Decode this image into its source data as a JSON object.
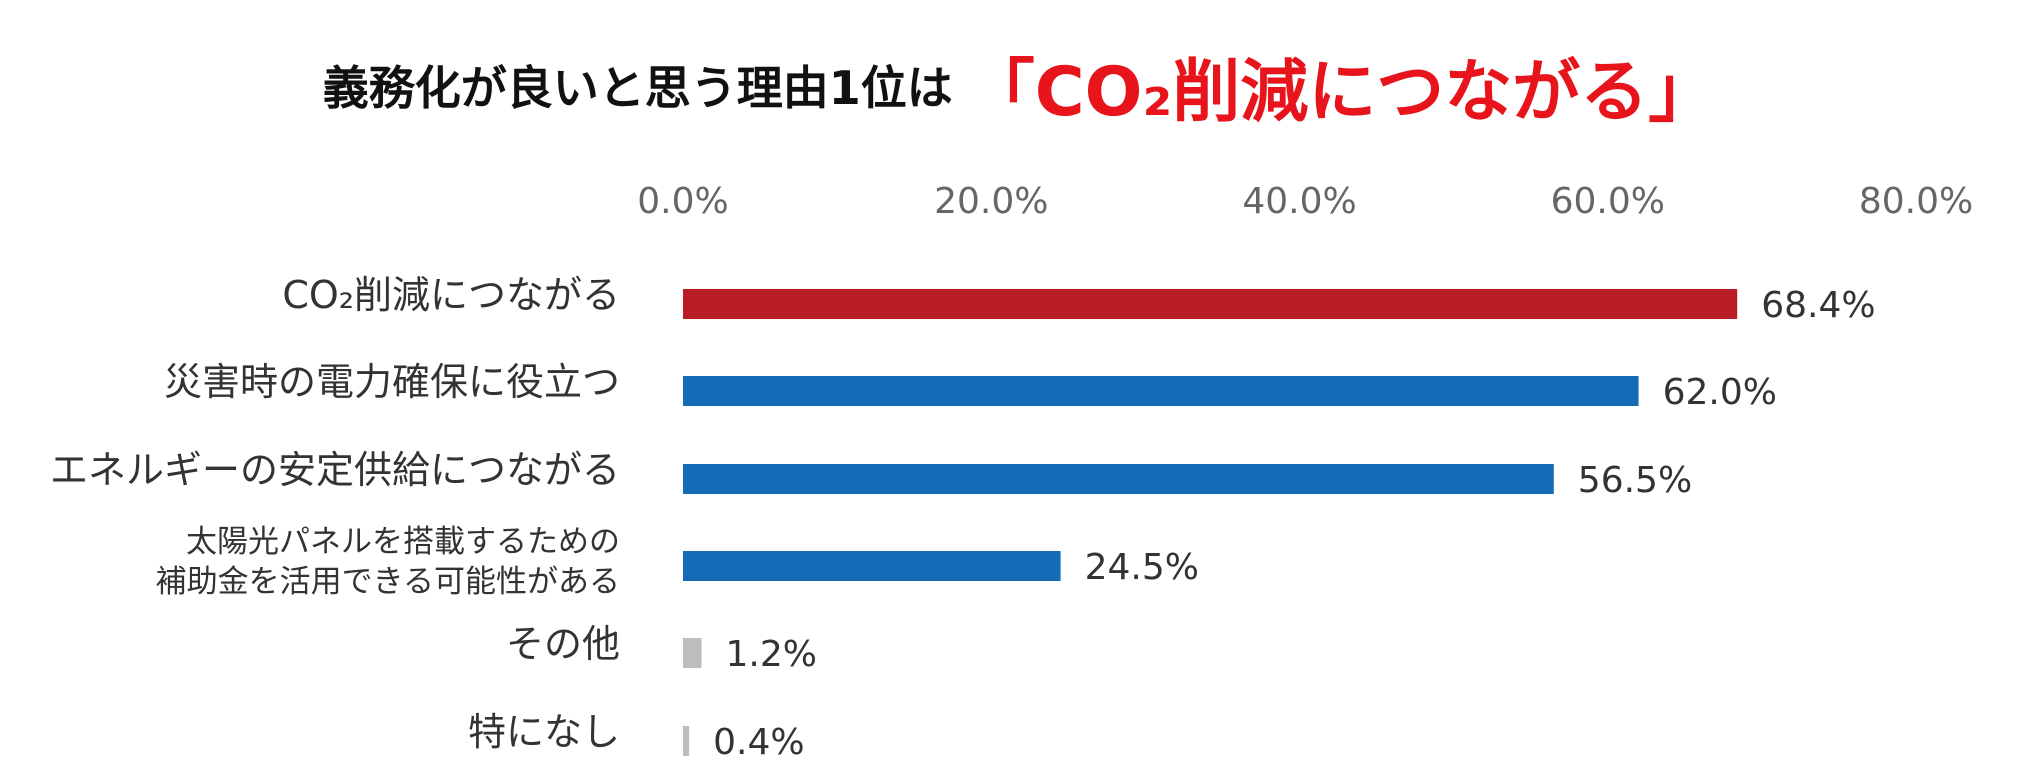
{
  "headline": {
    "text_black": "義務化が良いと思う理由1位は",
    "text_red": "「CO₂削減につながる」"
  },
  "colors": {
    "highlight": "#b81c25",
    "primary": "#156bb5",
    "minor": "#bdbdbd",
    "headline_red": "#e8141c"
  },
  "chart_data": {
    "type": "bar",
    "orientation": "horizontal",
    "title": "義務化が良いと思う理由1位は「CO₂削減につながる」",
    "xlim": [
      0,
      80
    ],
    "grid": false,
    "x_ticks": [
      "0.0%",
      "20.0%",
      "40.0%",
      "60.0%",
      "80.0%"
    ],
    "categories": [
      [
        "CO₂削減につながる"
      ],
      [
        "災害時の電力確保に役立つ"
      ],
      [
        "エネルギーの安定供給につながる"
      ],
      [
        "太陽光パネルを搭載するための",
        "補助金を活用できる可能性がある"
      ],
      [
        "その他"
      ],
      [
        "特になし"
      ]
    ],
    "values": [
      68.4,
      62.0,
      56.5,
      24.5,
      1.2,
      0.4
    ],
    "value_labels": [
      "68.4%",
      "62.0%",
      "56.5%",
      "24.5%",
      "1.2%",
      "0.4%"
    ],
    "bar_colors": [
      "#b81c25",
      "#156bb5",
      "#156bb5",
      "#156bb5",
      "#bdbdbd",
      "#bdbdbd"
    ]
  }
}
